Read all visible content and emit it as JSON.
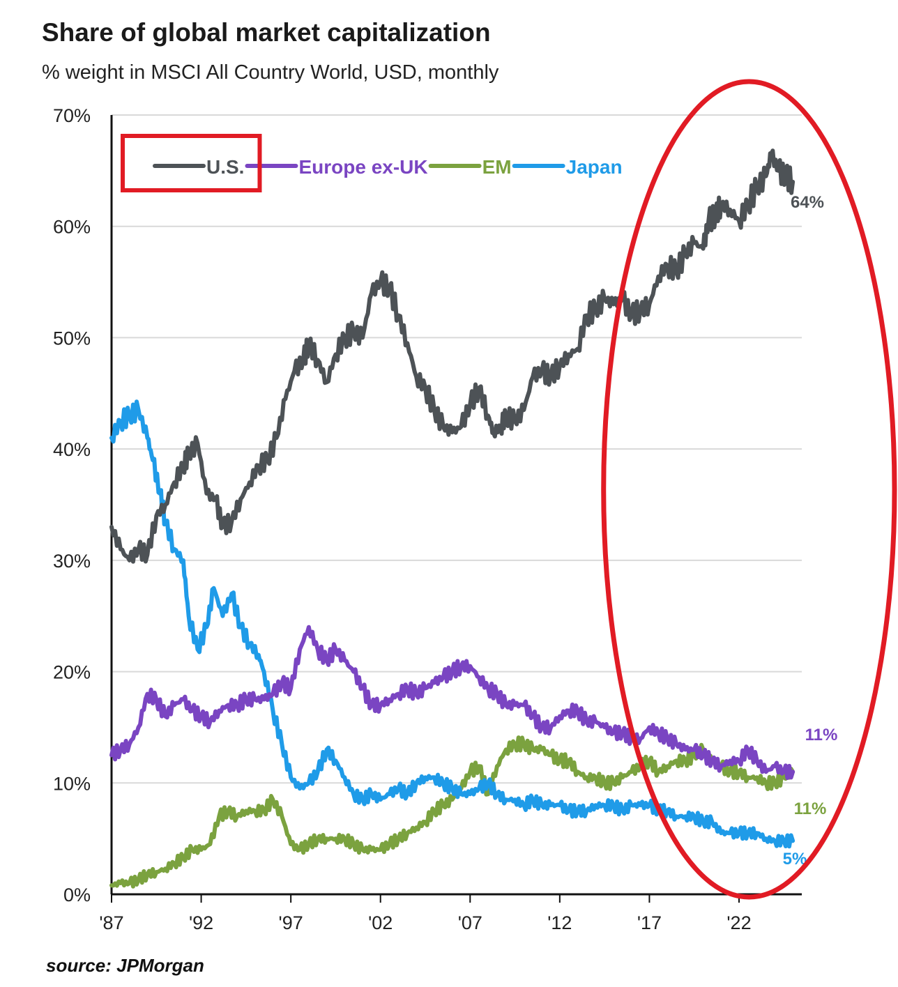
{
  "chart_data": {
    "type": "line",
    "title": "Share of global market capitalization",
    "subtitle": "% weight in MSCI All Country World, USD, monthly",
    "source": "source: JPMorgan",
    "xlabel": "",
    "ylabel": "",
    "xlim": [
      1987,
      2025.5
    ],
    "ylim": [
      0,
      70
    ],
    "x_ticks": [
      1987,
      1992,
      1997,
      2002,
      2007,
      2012,
      2017,
      2022
    ],
    "x_tick_labels": [
      "'87",
      "'92",
      "'97",
      "'02",
      "'07",
      "'12",
      "'17",
      "'22"
    ],
    "y_ticks": [
      0,
      10,
      20,
      30,
      40,
      50,
      60,
      70
    ],
    "y_tick_labels": [
      "0%",
      "10%",
      "20%",
      "30%",
      "40%",
      "50%",
      "60%",
      "70%"
    ],
    "grid": "horizontal",
    "legend_position": "top-left",
    "highlight_legend_entry": "U.S.",
    "highlight_region": [
      2019.5,
      2025.5
    ],
    "series": [
      {
        "name": "U.S.",
        "color": "#4d5256",
        "end_label": "64%",
        "x": [
          1987,
          1987.5,
          1988,
          1988.5,
          1989,
          1989.5,
          1990,
          1990.5,
          1991,
          1991.3,
          1991.8,
          1992.3,
          1992.8,
          1993.2,
          1993.7,
          1994.2,
          1994.7,
          1995.2,
          1995.7,
          1996.2,
          1996.7,
          1997.2,
          1997.7,
          1998,
          1998.5,
          1999,
          1999.5,
          2000,
          2000.5,
          2001,
          2001.5,
          2002,
          2002.5,
          2003,
          2003.5,
          2004,
          2004.5,
          2005,
          2005.5,
          2006,
          2006.5,
          2007,
          2007.5,
          2008,
          2008.3,
          2008.7,
          2009,
          2009.5,
          2010,
          2010.5,
          2011,
          2011.5,
          2012,
          2012.5,
          2013,
          2013.5,
          2014,
          2014.5,
          2015,
          2015.5,
          2016,
          2016.5,
          2017,
          2017.5,
          2018,
          2018.5,
          2019,
          2019.5,
          2020,
          2020.3,
          2020.7,
          2021,
          2021.5,
          2022,
          2022.5,
          2023,
          2023.5,
          2023.8,
          2024.2,
          2024.6,
          2025
        ],
        "values": [
          33,
          31,
          30,
          31,
          30.5,
          34,
          35,
          37,
          38.5,
          39.5,
          40.5,
          36,
          35.5,
          33,
          33.5,
          35.5,
          37,
          38.5,
          39,
          41,
          44.5,
          47,
          48,
          49.5,
          48,
          46,
          48.5,
          50,
          50.5,
          50,
          54,
          55,
          54.5,
          52,
          49.5,
          46.5,
          45.5,
          43.5,
          42,
          41.5,
          42,
          44,
          45.5,
          43,
          41.5,
          42,
          43,
          42.5,
          43.5,
          46.5,
          47,
          46.5,
          47.5,
          48.5,
          49,
          52,
          52.5,
          53.5,
          53,
          53.5,
          52,
          52.5,
          53,
          55.5,
          56.5,
          56,
          57.5,
          58.5,
          58,
          60.5,
          61,
          62,
          61.5,
          60.5,
          62,
          63.5,
          64.5,
          66.5,
          65,
          64.5,
          64
        ]
      },
      {
        "name": "Europe ex-UK",
        "color": "#7a45c2",
        "end_label": "11%",
        "x": [
          1987,
          1987.5,
          1988,
          1988.5,
          1989,
          1989.5,
          1990,
          1990.5,
          1991,
          1991.5,
          1992,
          1992.5,
          1993,
          1993.5,
          1994,
          1994.5,
          1995,
          1995.5,
          1996,
          1996.5,
          1997,
          1997.5,
          1998,
          1998.5,
          1999,
          1999.5,
          2000,
          2000.5,
          2001,
          2001.5,
          2002,
          2002.5,
          2003,
          2003.5,
          2004,
          2004.5,
          2005,
          2005.5,
          2006,
          2006.5,
          2007,
          2007.5,
          2008,
          2008.5,
          2009,
          2009.5,
          2010,
          2010.5,
          2011,
          2011.5,
          2012,
          2012.5,
          2013,
          2013.5,
          2014,
          2014.5,
          2015,
          2015.5,
          2016,
          2016.5,
          2017,
          2017.5,
          2018,
          2018.5,
          2019,
          2019.5,
          2020,
          2020.5,
          2021,
          2021.5,
          2022,
          2022.5,
          2023,
          2023.5,
          2024,
          2024.5,
          2025
        ],
        "values": [
          12.5,
          13,
          13.5,
          15,
          18,
          17.5,
          16,
          17,
          17.5,
          16.5,
          16,
          15.5,
          16.5,
          17,
          17,
          17.5,
          17.5,
          17.5,
          18,
          19,
          18.5,
          22,
          24,
          22,
          21,
          22,
          21,
          20,
          18.5,
          17,
          17,
          17.5,
          18,
          18.5,
          18,
          18.5,
          19,
          19.5,
          20,
          20.5,
          20.5,
          19.5,
          18.5,
          18,
          17,
          17,
          17,
          16,
          15,
          15,
          16,
          16.5,
          16.5,
          15.5,
          15.5,
          15,
          14.5,
          14.5,
          14,
          14,
          15,
          14.5,
          14,
          13.5,
          13,
          13,
          12.5,
          12,
          11.5,
          12,
          12,
          13,
          12,
          11,
          11.5,
          11,
          11
        ]
      },
      {
        "name": "EM",
        "color": "#7ba23f",
        "end_label": "11%",
        "x": [
          1987,
          1987.5,
          1988,
          1988.5,
          1989,
          1989.5,
          1990,
          1990.5,
          1991,
          1991.5,
          1992,
          1992.5,
          1993,
          1993.5,
          1994,
          1994.5,
          1995,
          1995.5,
          1996,
          1996.5,
          1997,
          1997.5,
          1998,
          1998.5,
          1999,
          1999.5,
          2000,
          2000.5,
          2001,
          2001.5,
          2002,
          2002.5,
          2003,
          2003.5,
          2004,
          2004.5,
          2005,
          2005.5,
          2006,
          2006.5,
          2007,
          2007.5,
          2008,
          2008.5,
          2009,
          2009.5,
          2010,
          2010.5,
          2011,
          2011.5,
          2012,
          2012.5,
          2013,
          2013.5,
          2014,
          2014.5,
          2015,
          2015.5,
          2016,
          2016.5,
          2017,
          2017.5,
          2018,
          2018.5,
          2019,
          2019.5,
          2020,
          2020.5,
          2021,
          2021.5,
          2022,
          2022.5,
          2023,
          2023.5,
          2024,
          2024.5,
          2025
        ],
        "values": [
          0.8,
          1,
          1,
          1.3,
          1.8,
          2,
          2.3,
          2.8,
          3.3,
          4,
          4,
          4.5,
          7,
          7.5,
          7,
          7.5,
          7.5,
          7.5,
          8.5,
          7,
          4.5,
          4,
          4.5,
          5,
          5,
          5,
          5,
          4.5,
          4,
          4,
          4,
          4.5,
          5,
          5.5,
          6,
          6.5,
          7.5,
          8,
          8.5,
          9.5,
          11,
          11.5,
          9,
          11.5,
          13,
          13.5,
          13.5,
          13,
          13,
          12.5,
          12,
          12,
          11,
          10.5,
          10.5,
          10,
          10,
          10.5,
          11,
          11.5,
          12,
          11,
          11.5,
          12,
          12,
          12.5,
          13,
          12,
          11.5,
          11,
          11,
          10.5,
          10.5,
          10,
          10,
          10.5,
          11
        ]
      },
      {
        "name": "Japan",
        "color": "#1f9be8",
        "end_label": "5%",
        "x": [
          1987,
          1987.5,
          1988,
          1988.5,
          1989,
          1989.3,
          1989.7,
          1990,
          1990.5,
          1991,
          1991.3,
          1991.8,
          1992.3,
          1992.7,
          1993.2,
          1993.7,
          1994.2,
          1994.7,
          1995.2,
          1995.5,
          1996,
          1996.5,
          1997,
          1997.5,
          1998,
          1998.5,
          1999,
          1999.5,
          2000,
          2000.5,
          2001,
          2001.5,
          2002,
          2002.5,
          2003,
          2003.5,
          2004,
          2004.5,
          2005,
          2005.5,
          2006,
          2006.5,
          2007,
          2007.5,
          2008,
          2008.5,
          2009,
          2009.5,
          2010,
          2010.5,
          2011,
          2011.5,
          2012,
          2012.5,
          2013,
          2013.5,
          2014,
          2014.5,
          2015,
          2015.5,
          2016,
          2016.5,
          2017,
          2017.5,
          2018,
          2018.5,
          2019,
          2019.5,
          2020,
          2020.5,
          2021,
          2021.5,
          2022,
          2022.5,
          2023,
          2023.5,
          2024,
          2024.5,
          2025
        ],
        "values": [
          41,
          42.5,
          43,
          43.5,
          41,
          39,
          36,
          33.5,
          31,
          30,
          25,
          22,
          24,
          27.5,
          25,
          27,
          24,
          22.5,
          21.5,
          20,
          16.5,
          13.5,
          10.5,
          9.5,
          10,
          11,
          13,
          12,
          10.5,
          9,
          8.5,
          9,
          8.5,
          9,
          9.5,
          9,
          10,
          10.5,
          10.5,
          10,
          9.5,
          9,
          9,
          9.5,
          10,
          9,
          8.5,
          8.5,
          8,
          8.5,
          8,
          8,
          8,
          7.5,
          7.5,
          7.5,
          8,
          8,
          8,
          7.5,
          8,
          8,
          8,
          7.5,
          7.5,
          7,
          7,
          7,
          6.5,
          6.5,
          5.5,
          5.5,
          5.5,
          5.5,
          5.5,
          5,
          4.8,
          4.8,
          4.8
        ]
      }
    ]
  }
}
